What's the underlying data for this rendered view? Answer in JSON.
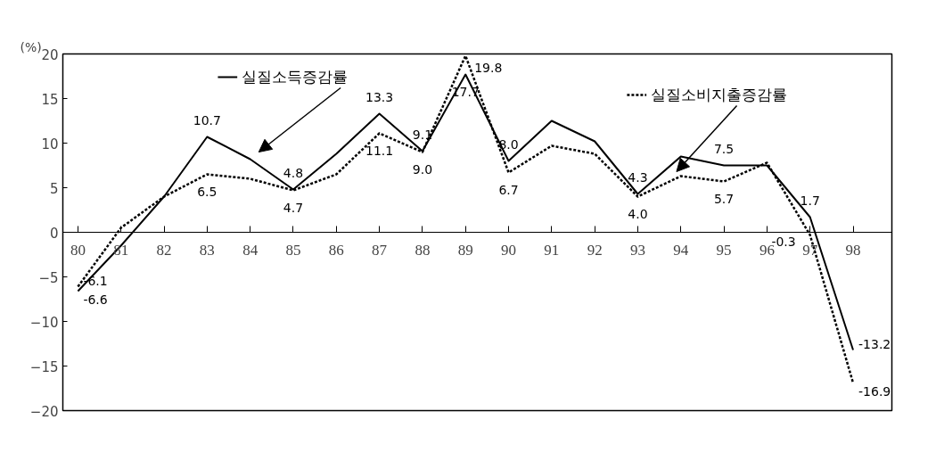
{
  "chart_data": {
    "type": "line",
    "ylabel": "(%)",
    "categories": [
      "80",
      "81",
      "82",
      "83",
      "84",
      "85",
      "86",
      "87",
      "88",
      "89",
      "90",
      "91",
      "92",
      "93",
      "94",
      "95",
      "96",
      "97",
      "98"
    ],
    "ylim": [
      -20,
      20
    ],
    "yticks": [
      -20,
      -15,
      -10,
      -5,
      0,
      5,
      10,
      15,
      20
    ],
    "grid": false,
    "legend": "top",
    "marker": "none",
    "series": [
      {
        "name": "실질소득증감률",
        "color": "#000000",
        "line_style": "solid",
        "values": [
          -6.6,
          -1.5,
          4.0,
          10.7,
          8.2,
          4.8,
          8.8,
          13.3,
          9.1,
          17.7,
          8.0,
          12.5,
          10.2,
          4.3,
          8.5,
          7.5,
          7.5,
          1.7,
          -13.2
        ],
        "value_labels": [
          "-6.6",
          null,
          null,
          "10.7",
          null,
          "4.8",
          null,
          "13.3",
          "9.1",
          "17.7",
          "8.0",
          null,
          null,
          "4.3",
          null,
          "7.5",
          null,
          "1.7",
          "-13.2"
        ]
      },
      {
        "name": "실질소비지출증감률",
        "color": "#000000",
        "line_style": "dotted",
        "values": [
          -6.1,
          0.5,
          4.0,
          6.5,
          6.0,
          4.7,
          6.5,
          11.1,
          9.0,
          19.8,
          6.7,
          9.7,
          8.8,
          4.0,
          6.3,
          5.7,
          7.8,
          -0.3,
          -16.9
        ],
        "value_labels": [
          "-6.1",
          null,
          null,
          "6.5",
          null,
          "4.7",
          null,
          "11.1",
          "9.0",
          "19.8",
          "6.7",
          null,
          null,
          "4.0",
          null,
          "5.7",
          null,
          "-0.3",
          "-16.9"
        ]
      }
    ]
  }
}
